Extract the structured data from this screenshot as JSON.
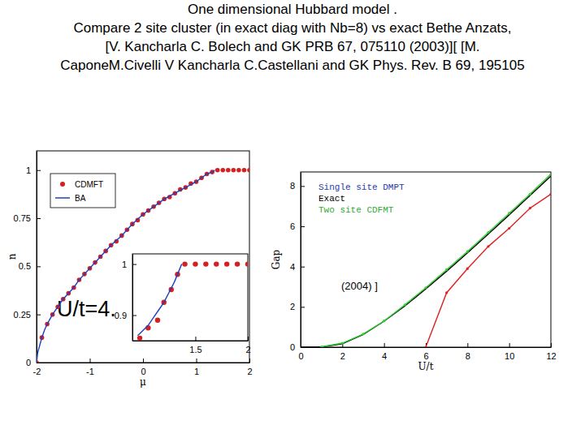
{
  "slide": {
    "title": [
      "One dimensional Hubbard model .",
      "Compare 2 site cluster (in exact diag with Nb=8) vs exact Bethe Anzats,",
      "[V. Kancharla C. Bolech and GK PRB 67, 075110 (2003)][ [M.",
      "CaponeM.Civelli V Kancharla C.Castellani and GK Phys. Rev. B 69, 195105"
    ],
    "title_end": "(2004)  ]",
    "note": "U/t=4."
  },
  "chart_data": [
    {
      "type": "line",
      "x_label": "μ",
      "y_label": "n",
      "xlim": [
        -2,
        2
      ],
      "xticks": [
        -2,
        -1,
        0,
        1,
        2
      ],
      "ylim": [
        0,
        1.1
      ],
      "yticks": [
        0,
        0.25,
        0.5,
        0.75,
        1
      ],
      "legend": "upper left",
      "series": [
        {
          "name": "CDMFT",
          "type": "scatter",
          "marker": "circle",
          "color": "#d42020",
          "x": [
            -2,
            -1.9,
            -1.8,
            -1.7,
            -1.6,
            -1.5,
            -1.4,
            -1.3,
            -1.2,
            -1.1,
            -1.0,
            -0.9,
            -0.8,
            -0.7,
            -0.6,
            -0.5,
            -0.4,
            -0.3,
            -0.2,
            -0.1,
            0,
            0.1,
            0.2,
            0.3,
            0.4,
            0.5,
            0.6,
            0.7,
            0.8,
            0.9,
            1.0,
            1.1,
            1.2,
            1.3,
            1.4,
            1.5,
            1.6,
            1.7,
            1.8,
            1.9,
            2.0
          ],
          "values": [
            0.0,
            0.13,
            0.2,
            0.25,
            0.29,
            0.33,
            0.36,
            0.39,
            0.43,
            0.46,
            0.49,
            0.52,
            0.55,
            0.58,
            0.61,
            0.63,
            0.66,
            0.69,
            0.72,
            0.74,
            0.77,
            0.79,
            0.81,
            0.83,
            0.85,
            0.86,
            0.88,
            0.9,
            0.91,
            0.93,
            0.94,
            0.96,
            0.98,
            0.99,
            1,
            1,
            1,
            1,
            1,
            1,
            1
          ]
        },
        {
          "name": "BA",
          "type": "line",
          "line_style": "solid",
          "color": "#1f3fbf",
          "x": [
            -2,
            -1.98,
            -1.95,
            -1.9,
            -1.85,
            -1.8,
            -1.7,
            -1.6,
            -1.5,
            -1.4,
            -1.3,
            -1.2,
            -1.1,
            -1.0,
            -0.8,
            -0.6,
            -0.4,
            -0.2,
            0,
            0.2,
            0.4,
            0.6,
            0.8,
            1.0,
            1.1,
            1.2,
            1.3,
            1.35
          ],
          "values": [
            0.0,
            0.05,
            0.08,
            0.13,
            0.17,
            0.2,
            0.25,
            0.29,
            0.33,
            0.36,
            0.39,
            0.43,
            0.46,
            0.49,
            0.55,
            0.61,
            0.66,
            0.72,
            0.77,
            0.81,
            0.85,
            0.88,
            0.91,
            0.94,
            0.96,
            0.98,
            0.99,
            1.0
          ]
        }
      ]
    },
    {
      "type": "line",
      "x_label": "U/t",
      "y_label": "Gap",
      "xlim": [
        0,
        12
      ],
      "xticks": [
        0,
        2,
        4,
        6,
        8,
        10,
        12
      ],
      "ylim": [
        0,
        8.7
      ],
      "yticks": [
        0,
        2,
        4,
        6,
        8
      ],
      "legend": "upper left",
      "series": [
        {
          "name": "Single site DMPT",
          "type": "line",
          "marker": "circle",
          "line_style": "solid",
          "color": "#dd2222",
          "x": [
            6,
            7,
            8,
            9,
            10,
            11,
            12
          ],
          "values": [
            0,
            2.7,
            3.9,
            5.0,
            5.9,
            6.9,
            7.6
          ]
        },
        {
          "name": "Exact",
          "type": "line",
          "line_style": "solid",
          "color": "#000000",
          "x": [
            0,
            1,
            2,
            3,
            4,
            5,
            6,
            7,
            8,
            9,
            10,
            11,
            12
          ],
          "values": [
            0,
            0.005,
            0.17,
            0.63,
            1.29,
            2.05,
            2.89,
            3.77,
            4.68,
            5.62,
            6.57,
            7.53,
            8.5
          ]
        },
        {
          "name": "Two site CDFMT",
          "type": "line",
          "marker": "circle",
          "line_style": "solid",
          "color": "#33cc33",
          "x": [
            1,
            2,
            3,
            4,
            5,
            6,
            7,
            8,
            9,
            10,
            11,
            12
          ],
          "values": [
            0.02,
            0.2,
            0.65,
            1.3,
            2.1,
            2.95,
            3.85,
            4.75,
            5.7,
            6.65,
            7.6,
            8.6
          ]
        }
      ]
    },
    {
      "type": "line",
      "xlim": [
        0.9,
        2
      ],
      "xticks": [
        1.5,
        2
      ],
      "ylim": [
        0.85,
        1.02
      ],
      "yticks": [
        0.9,
        1
      ],
      "series": [
        {
          "name": "CDMFT",
          "type": "scatter",
          "marker": "circle",
          "color": "#d42020",
          "x": [
            0.97,
            1.05,
            1.14,
            1.2,
            1.27,
            1.33,
            1.4,
            1.5,
            1.6,
            1.7,
            1.8,
            1.9,
            2.0
          ],
          "values": [
            0.855,
            0.875,
            0.89,
            0.925,
            0.95,
            0.98,
            1,
            1,
            1,
            1,
            1,
            1,
            1
          ]
        },
        {
          "name": "BA",
          "type": "line",
          "line_style": "solid",
          "color": "#1f3fbf",
          "x": [
            0.95,
            1.0,
            1.05,
            1.1,
            1.15,
            1.2,
            1.25,
            1.3,
            1.35,
            1.37
          ],
          "values": [
            0.86,
            0.87,
            0.88,
            0.895,
            0.91,
            0.925,
            0.945,
            0.965,
            0.99,
            1.0
          ]
        }
      ]
    }
  ]
}
